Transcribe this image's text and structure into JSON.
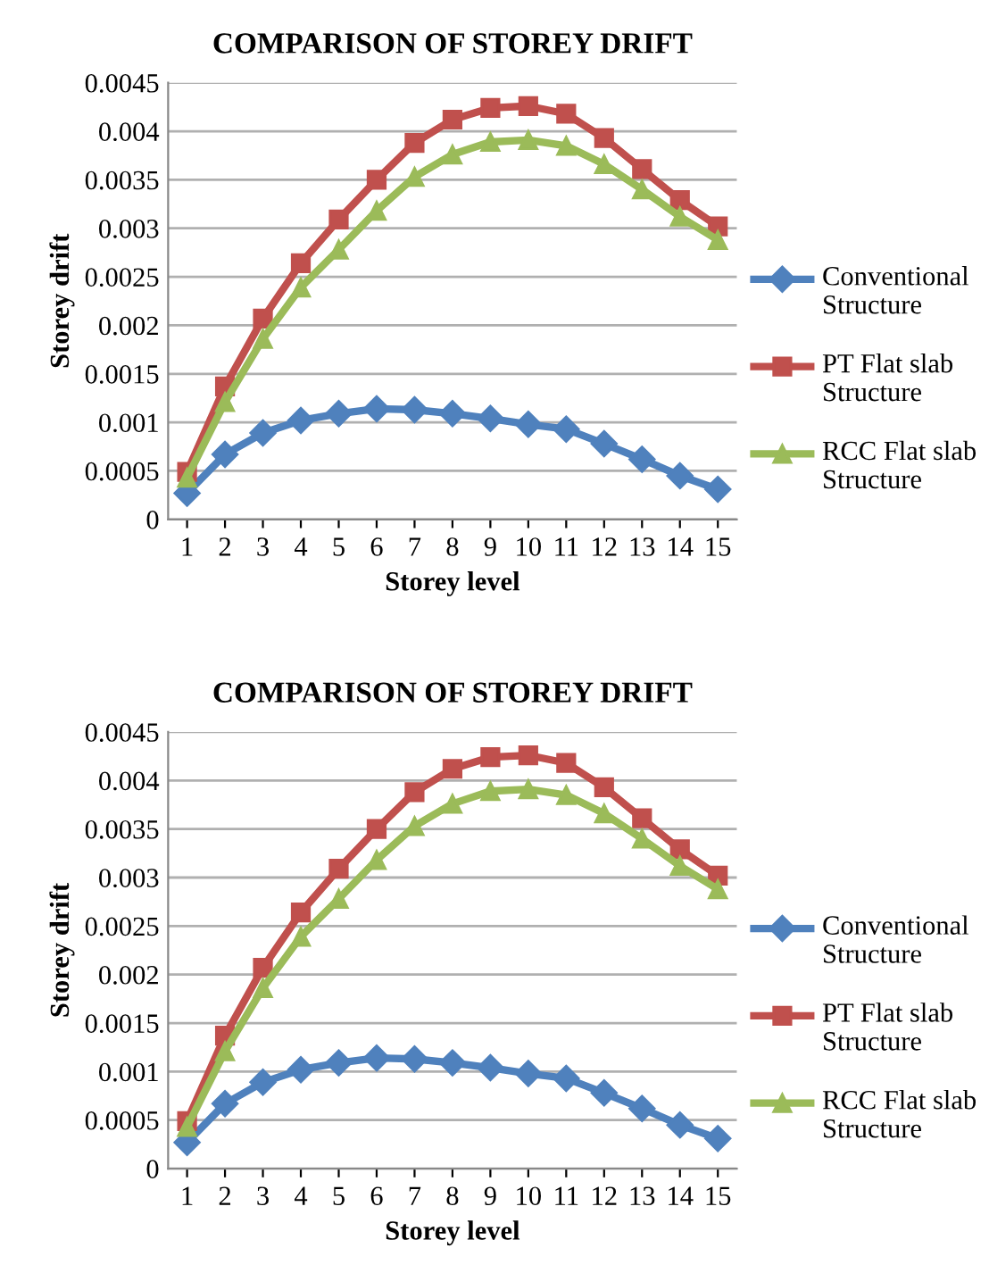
{
  "chart_data": [
    {
      "type": "line",
      "title": "COMPARISON OF STOREY DRIFT",
      "xlabel": "Storey level",
      "ylabel": "Storey drift",
      "categories": [
        "1",
        "2",
        "3",
        "4",
        "5",
        "6",
        "7",
        "8",
        "9",
        "10",
        "11",
        "12",
        "13",
        "14",
        "15"
      ],
      "ylim": [
        0,
        0.0045
      ],
      "yticks": [
        {
          "value": 0,
          "label": "0"
        },
        {
          "value": 0.0005,
          "label": "0.0005"
        },
        {
          "value": 0.001,
          "label": "0.001"
        },
        {
          "value": 0.0015,
          "label": "0.0015"
        },
        {
          "value": 0.002,
          "label": "0.002"
        },
        {
          "value": 0.0025,
          "label": "0.0025"
        },
        {
          "value": 0.003,
          "label": "0.003"
        },
        {
          "value": 0.0035,
          "label": "0.0035"
        },
        {
          "value": 0.004,
          "label": "0.004"
        },
        {
          "value": 0.0045,
          "label": "0.0045"
        }
      ],
      "grid": "y",
      "legend": "right",
      "line_style": "solid",
      "series": [
        {
          "name": "Conventional Structure",
          "color": "#4f81bd",
          "marker": "diamond",
          "values": [
            0.00027,
            0.00067,
            0.00089,
            0.00102,
            0.00109,
            0.00114,
            0.00113,
            0.00109,
            0.00104,
            0.00098,
            0.00093,
            0.00078,
            0.00062,
            0.00045,
            0.00031
          ]
        },
        {
          "name": "PT Flat slab Structure",
          "color": "#c0504d",
          "marker": "square",
          "values": [
            0.00049,
            0.00137,
            0.00207,
            0.00264,
            0.00309,
            0.0035,
            0.00388,
            0.00412,
            0.00424,
            0.00426,
            0.00418,
            0.00393,
            0.00361,
            0.00329,
            0.00302
          ]
        },
        {
          "name": "RCC Flat slab Structure",
          "color": "#9bbb59",
          "marker": "triangle",
          "values": [
            0.00043,
            0.00121,
            0.00186,
            0.00239,
            0.00278,
            0.00318,
            0.00353,
            0.00376,
            0.00389,
            0.00391,
            0.00385,
            0.00366,
            0.0034,
            0.00312,
            0.00288
          ]
        }
      ]
    },
    {
      "type": "line",
      "title": "COMPARISON OF STOREY DRIFT",
      "xlabel": "Storey level",
      "ylabel": "Storey drift",
      "categories": [
        "1",
        "2",
        "3",
        "4",
        "5",
        "6",
        "7",
        "8",
        "9",
        "10",
        "11",
        "12",
        "13",
        "14",
        "15"
      ],
      "ylim": [
        0,
        0.0045
      ],
      "yticks": [
        {
          "value": 0,
          "label": "0"
        },
        {
          "value": 0.0005,
          "label": "0.0005"
        },
        {
          "value": 0.001,
          "label": "0.001"
        },
        {
          "value": 0.0015,
          "label": "0.0015"
        },
        {
          "value": 0.002,
          "label": "0.002"
        },
        {
          "value": 0.0025,
          "label": "0.0025"
        },
        {
          "value": 0.003,
          "label": "0.003"
        },
        {
          "value": 0.0035,
          "label": "0.0035"
        },
        {
          "value": 0.004,
          "label": "0.004"
        },
        {
          "value": 0.0045,
          "label": "0.0045"
        }
      ],
      "grid": "y",
      "legend": "right",
      "line_style": "solid",
      "series": [
        {
          "name": "Conventional Structure",
          "color": "#4f81bd",
          "marker": "diamond",
          "values": [
            0.00027,
            0.00067,
            0.00089,
            0.00102,
            0.00109,
            0.00114,
            0.00113,
            0.00109,
            0.00104,
            0.00098,
            0.00093,
            0.00078,
            0.00062,
            0.00045,
            0.00031
          ]
        },
        {
          "name": "PT Flat slab Structure",
          "color": "#c0504d",
          "marker": "square",
          "values": [
            0.00049,
            0.00137,
            0.00207,
            0.00264,
            0.00309,
            0.0035,
            0.00388,
            0.00412,
            0.00424,
            0.00426,
            0.00418,
            0.00393,
            0.00361,
            0.00329,
            0.00302
          ]
        },
        {
          "name": "RCC Flat slab Structure",
          "color": "#9bbb59",
          "marker": "triangle",
          "values": [
            0.00043,
            0.00121,
            0.00186,
            0.00239,
            0.00278,
            0.00318,
            0.00353,
            0.00376,
            0.00389,
            0.00391,
            0.00385,
            0.00366,
            0.0034,
            0.00312,
            0.00288
          ]
        }
      ]
    }
  ]
}
